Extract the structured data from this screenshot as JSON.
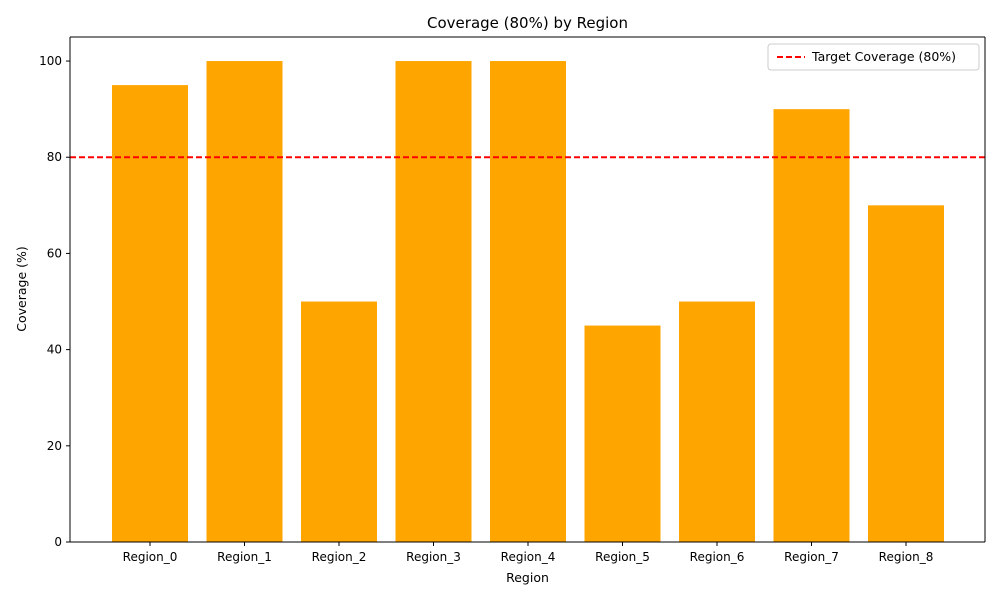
{
  "chart_data": {
    "type": "bar",
    "title": "Coverage (80%) by Region",
    "xlabel": "Region",
    "ylabel": "Coverage (%)",
    "categories": [
      "Region_0",
      "Region_1",
      "Region_2",
      "Region_3",
      "Region_4",
      "Region_5",
      "Region_6",
      "Region_7",
      "Region_8"
    ],
    "values": [
      95,
      100,
      50,
      100,
      100,
      45,
      50,
      90,
      70
    ],
    "ylim": [
      0,
      105
    ],
    "yticks": [
      0,
      20,
      40,
      60,
      80,
      100
    ],
    "bar_color": "#ffa500",
    "grid": false,
    "reference_line": {
      "value": 80,
      "label": "Target Coverage (80%)",
      "color": "#ff0000",
      "style": "dashed"
    },
    "legend": {
      "position": "top-right",
      "entries": [
        "Target Coverage (80%)"
      ]
    }
  }
}
